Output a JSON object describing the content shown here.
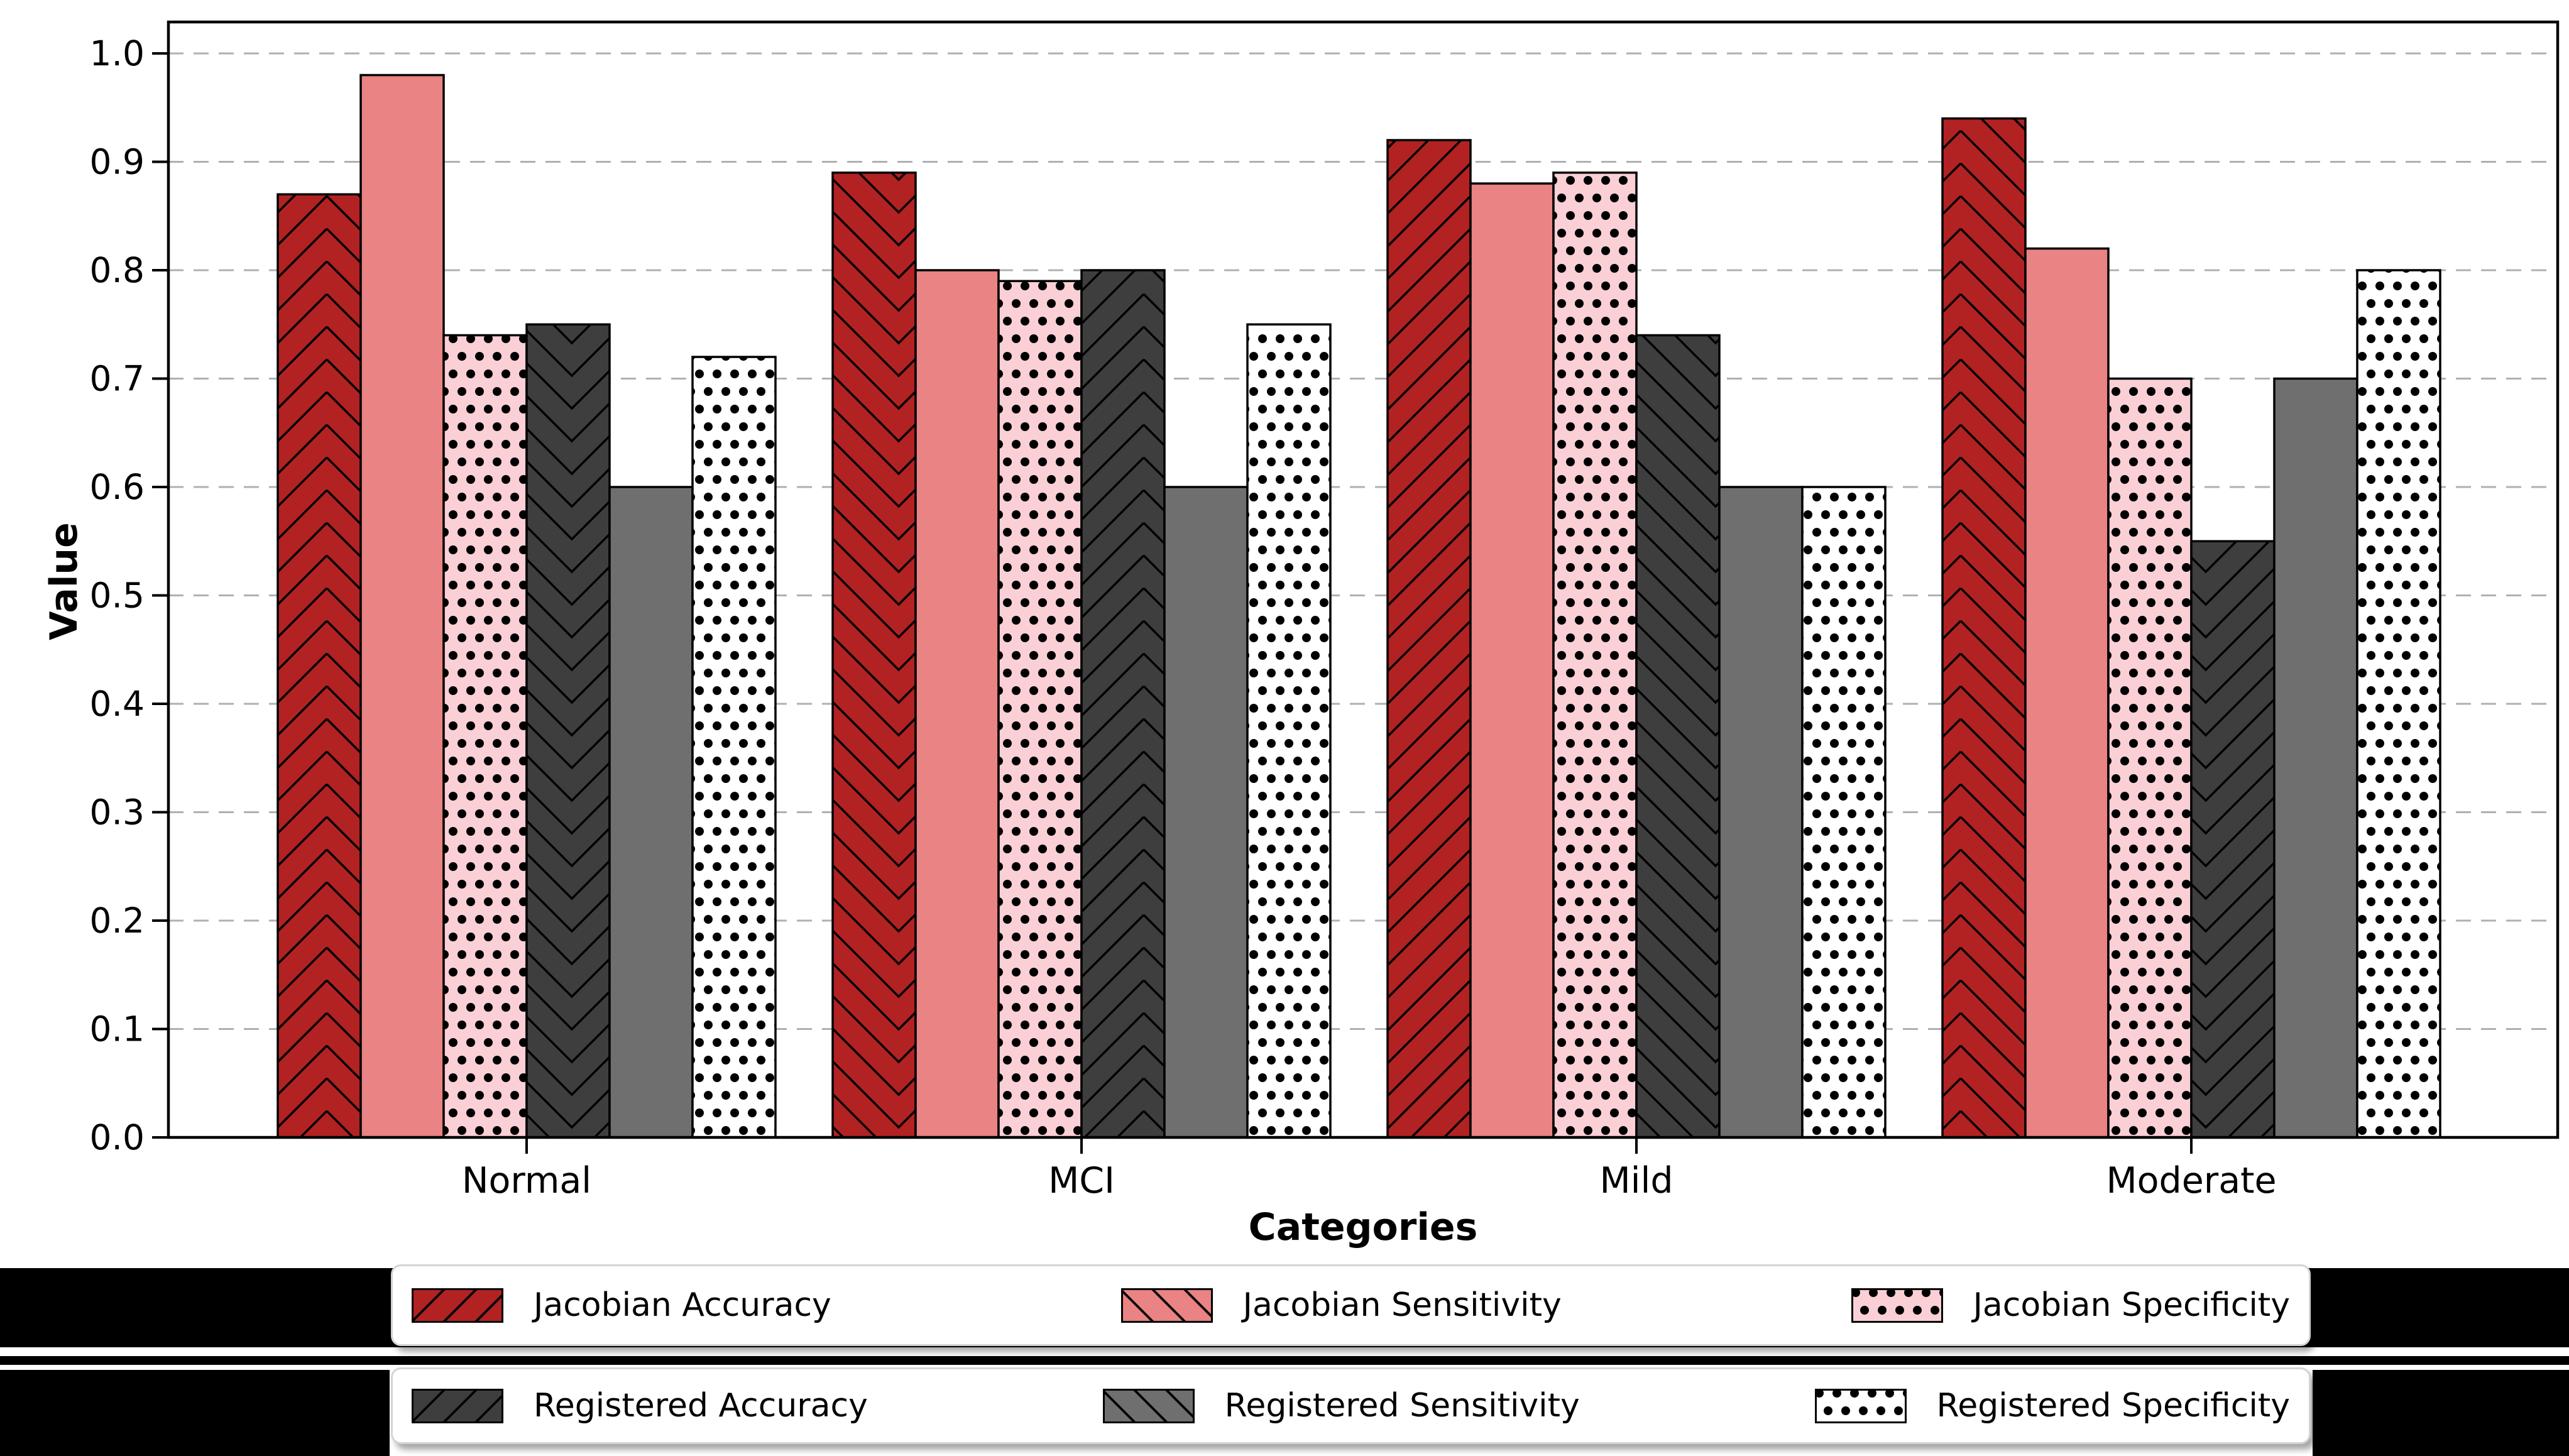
{
  "figure": {
    "background": "#ffffff",
    "band_color": "#000000",
    "gridline_color": "#b0b0b0",
    "spine_color": "#000000"
  },
  "chart_data": {
    "type": "bar",
    "title": "",
    "xlabel": "Categories",
    "ylabel": "Value",
    "categories": [
      "Normal",
      "MCI",
      "Mild",
      "Moderate"
    ],
    "series": [
      {
        "name": "Jacobian Accuracy",
        "color": "#B22222",
        "hatch": "chevron",
        "legend_hatch": "fslash",
        "values": [
          0.87,
          0.89,
          0.92,
          0.94
        ]
      },
      {
        "name": "Jacobian Sensitivity",
        "color": "#EA8383",
        "hatch": "backslash",
        "legend_hatch": "bslash",
        "values": [
          0.98,
          0.8,
          0.88,
          0.82
        ]
      },
      {
        "name": "Jacobian Specificity",
        "color": "#FAD0D6",
        "hatch": "dots",
        "legend_hatch": "dots",
        "values": [
          0.74,
          0.79,
          0.89,
          0.7
        ]
      },
      {
        "name": "Registered Accuracy",
        "color": "#3E3E3E",
        "hatch": "chevron",
        "legend_hatch": "fslash",
        "values": [
          0.75,
          0.8,
          0.74,
          0.55
        ]
      },
      {
        "name": "Registered Sensitivity",
        "color": "#6F6F6F",
        "hatch": "backslash",
        "legend_hatch": "bslash",
        "values": [
          0.6,
          0.6,
          0.6,
          0.7
        ]
      },
      {
        "name": "Registered Specificity",
        "color": "#FFFFFF",
        "hatch": "dots",
        "legend_hatch": "dots",
        "values": [
          0.72,
          0.75,
          0.6,
          0.8
        ]
      }
    ],
    "ylim": [
      0.0,
      1.0
    ],
    "ytick_step": 0.1,
    "ytick_labels": [
      "0.0",
      "0.1",
      "0.2",
      "0.3",
      "0.4",
      "0.5",
      "0.6",
      "0.7",
      "0.8",
      "0.9",
      "1.0"
    ],
    "grid": "horizontal-dashed",
    "legend_position": "below-axes-two-rows"
  },
  "legend": {
    "rows": [
      [
        0,
        1,
        2
      ],
      [
        3,
        4,
        5
      ]
    ]
  }
}
